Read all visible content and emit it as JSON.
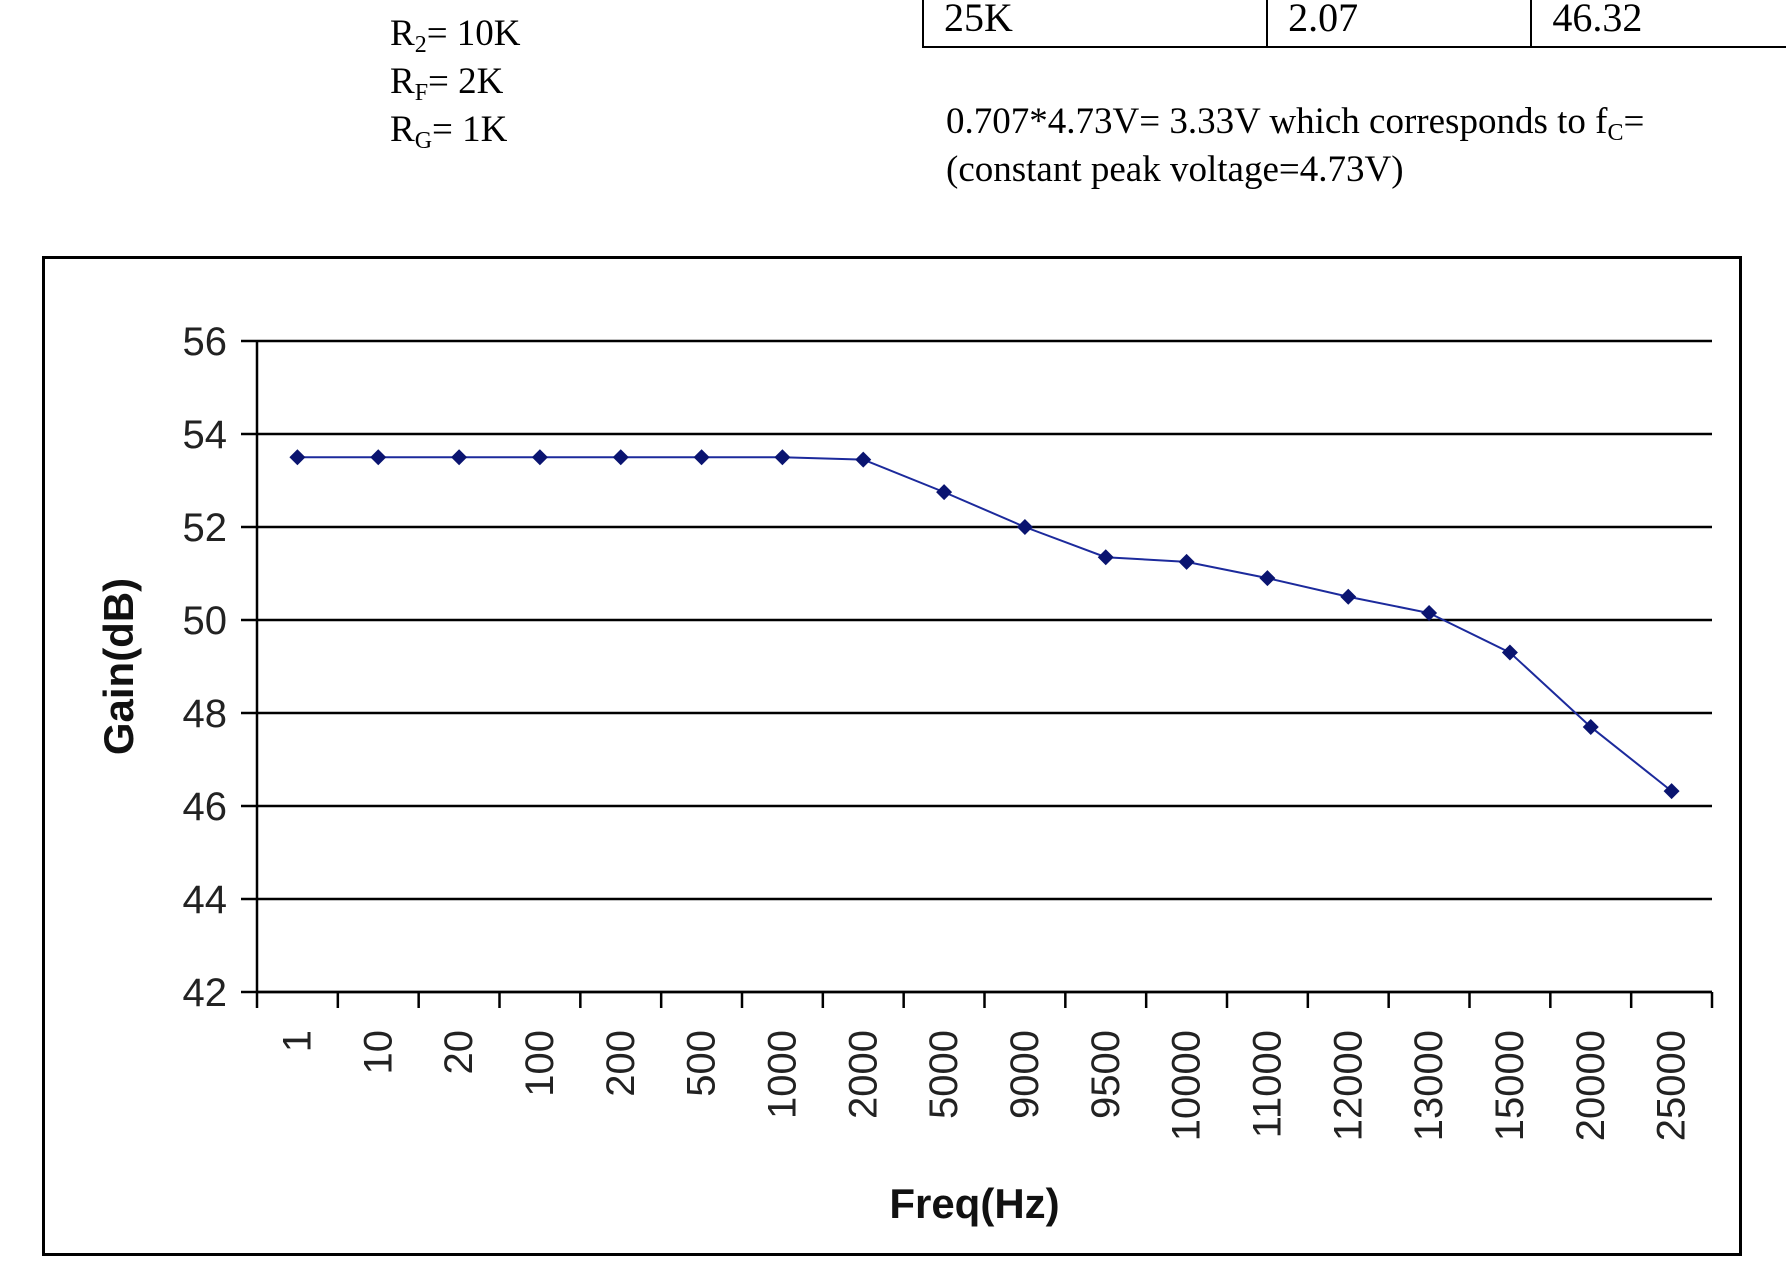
{
  "circuit": {
    "r2_label": "R",
    "r2_sub": "2",
    "r2_value": "= 10K",
    "rf_label": "R",
    "rf_sub": "F",
    "rf_value": "= 2K",
    "rg_label": "R",
    "rg_sub": "G",
    "rg_value": "= 1K"
  },
  "table_row": {
    "freq": "25K",
    "vout": "2.07",
    "gain": "46.32"
  },
  "note": {
    "line1": "0.707*4.73V= 3.33V which corresponds to f",
    "line1_sub": "C",
    "line1_end": "=",
    "line2": "(constant peak voltage=4.73V)"
  },
  "chart_data": {
    "type": "line",
    "title": "",
    "xlabel": "Freq(Hz)",
    "ylabel": "Gain(dB)",
    "categories": [
      "1",
      "10",
      "20",
      "100",
      "200",
      "500",
      "1000",
      "2000",
      "5000",
      "9000",
      "9500",
      "10000",
      "11000",
      "12000",
      "13000",
      "15000",
      "20000",
      "25000"
    ],
    "series": [
      {
        "values": [
          53.5,
          53.5,
          53.5,
          53.5,
          53.5,
          53.5,
          53.5,
          53.45,
          52.75,
          52.0,
          51.35,
          51.25,
          50.9,
          50.5,
          50.15,
          49.3,
          47.7,
          46.32
        ]
      }
    ],
    "ylim": [
      42,
      56
    ],
    "yticks": [
      42,
      44,
      46,
      48,
      50,
      52,
      54,
      56
    ],
    "grid": true,
    "legend": "none",
    "line_color": "#1c2a9c",
    "marker_color": "#0a1470"
  }
}
